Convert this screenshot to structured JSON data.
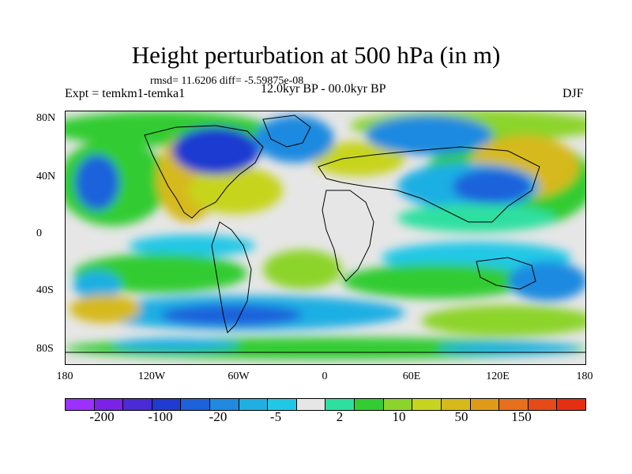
{
  "title": "Height perturbation at 500 hPa (in m)",
  "stats": "rmsd= 11.6206 diff= -5.59875e-08",
  "experiment": "Expt = temkm1-temka1",
  "period": "12.0kyr BP - 00.0kyr BP",
  "season": "DJF",
  "y_axis_labels": [
    "80N",
    "40N",
    "0",
    "40S",
    "80S"
  ],
  "x_axis_labels": [
    "180",
    "120W",
    "60W",
    "0",
    "60E",
    "120E",
    "180"
  ],
  "colorbar": {
    "colors": [
      "#9b30ff",
      "#7a22e6",
      "#4b2bd6",
      "#1f3bd0",
      "#1d62db",
      "#1f8ae0",
      "#1fafe3",
      "#20c8e6",
      "#e6e6e6",
      "#2de0a0",
      "#33cc33",
      "#8cd42b",
      "#c7d41f",
      "#d6b91a",
      "#e09a1a",
      "#e6701d",
      "#e64a19",
      "#e62e12"
    ],
    "labels": [
      "-200",
      "-100",
      "-20",
      "-5",
      "2",
      "10",
      "50",
      "150"
    ]
  }
}
